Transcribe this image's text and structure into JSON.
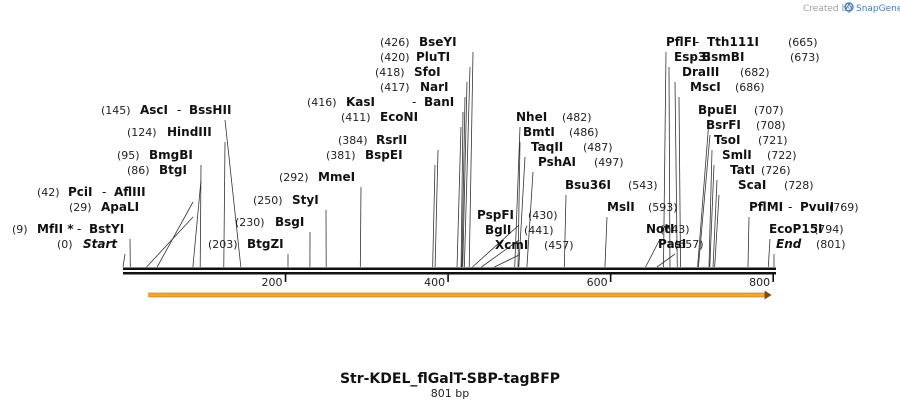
{
  "credit": {
    "created_by": "Created by",
    "brand": "SnapGene"
  },
  "sequence": {
    "length": 801,
    "title": "Str-KDEL_flGalT-SBP-tagBFP",
    "length_label": "801 bp"
  },
  "ruler_ticks": [
    {
      "value": 200,
      "label": "200"
    },
    {
      "value": 400,
      "label": "400"
    },
    {
      "value": 600,
      "label": "600"
    },
    {
      "value": 800,
      "label": "800"
    }
  ],
  "feature": {
    "name": "orf-arrow",
    "start": 34,
    "end": 798,
    "color": "#f0a830"
  },
  "sites": [
    {
      "pos": 426,
      "pos_label": "(426)",
      "names": [
        "BseYI"
      ]
    },
    {
      "pos": 420,
      "pos_label": "(420)",
      "names": [
        "PluTI"
      ]
    },
    {
      "pos": 418,
      "pos_label": "(418)",
      "names": [
        "SfoI"
      ]
    },
    {
      "pos": 417,
      "pos_label": "(417)",
      "names": [
        "NarI"
      ]
    },
    {
      "pos": 416,
      "pos_label": "(416)",
      "names": [
        "KasI",
        "BanI"
      ]
    },
    {
      "pos": 411,
      "pos_label": "(411)",
      "names": [
        "EcoNI"
      ]
    },
    {
      "pos": 384,
      "pos_label": "(384)",
      "names": [
        "RsrII"
      ]
    },
    {
      "pos": 381,
      "pos_label": "(381)",
      "names": [
        "BspEI"
      ]
    },
    {
      "pos": 145,
      "pos_label": "(145)",
      "names": [
        "AscI",
        "BssHII"
      ]
    },
    {
      "pos": 124,
      "pos_label": "(124)",
      "names": [
        "HindIII"
      ]
    },
    {
      "pos": 95,
      "pos_label": "(95)",
      "names": [
        "BmgBI"
      ]
    },
    {
      "pos": 86,
      "pos_label": "(86)",
      "names": [
        "BtgI"
      ]
    },
    {
      "pos": 42,
      "pos_label": "(42)",
      "names": [
        "PciI",
        "AflIII"
      ]
    },
    {
      "pos": 29,
      "pos_label": "(29)",
      "names": [
        "ApaLI"
      ]
    },
    {
      "pos": 9,
      "pos_label": "(9)",
      "names": [
        "MfII *",
        "BstYI"
      ]
    },
    {
      "pos": 0,
      "pos_label": "(0)",
      "names": [
        "Start"
      ],
      "italic": true
    },
    {
      "pos": 292,
      "pos_label": "(292)",
      "names": [
        "MmeI"
      ]
    },
    {
      "pos": 250,
      "pos_label": "(250)",
      "names": [
        "StyI"
      ]
    },
    {
      "pos": 230,
      "pos_label": "(230)",
      "names": [
        "BsgI"
      ]
    },
    {
      "pos": 203,
      "pos_label": "(203)",
      "names": [
        "BtgZI"
      ]
    },
    {
      "pos": 482,
      "pos_label": "(482)",
      "names": [
        "NheI"
      ]
    },
    {
      "pos": 486,
      "pos_label": "(486)",
      "names": [
        "BmtI"
      ]
    },
    {
      "pos": 487,
      "pos_label": "(487)",
      "names": [
        "TaqII"
      ]
    },
    {
      "pos": 497,
      "pos_label": "(497)",
      "names": [
        "PshAI"
      ]
    },
    {
      "pos": 430,
      "pos_label": "(430)",
      "names": [
        "PspFI"
      ]
    },
    {
      "pos": 441,
      "pos_label": "(441)",
      "names": [
        "BglI"
      ]
    },
    {
      "pos": 457,
      "pos_label": "(457)",
      "names": [
        "XcmI"
      ]
    },
    {
      "pos": 543,
      "pos_label": "(543)",
      "names": [
        "Bsu36I"
      ]
    },
    {
      "pos": 593,
      "pos_label": "(593)",
      "names": [
        "MslI"
      ]
    },
    {
      "pos": 665,
      "pos_label": "(665)",
      "names": [
        "PflFI",
        "Tth111I"
      ]
    },
    {
      "pos": 673,
      "pos_label": "(673)",
      "names": [
        "Esp3I",
        "BsmBI"
      ]
    },
    {
      "pos": 682,
      "pos_label": "(682)",
      "names": [
        "DraIII"
      ]
    },
    {
      "pos": 686,
      "pos_label": "(686)",
      "names": [
        "MscI"
      ]
    },
    {
      "pos": 707,
      "pos_label": "(707)",
      "names": [
        "BpuEI"
      ]
    },
    {
      "pos": 708,
      "pos_label": "(708)",
      "names": [
        "BsrFI"
      ]
    },
    {
      "pos": 721,
      "pos_label": "(721)",
      "names": [
        "TsoI"
      ]
    },
    {
      "pos": 722,
      "pos_label": "(722)",
      "names": [
        "SmlI"
      ]
    },
    {
      "pos": 726,
      "pos_label": "(726)",
      "names": [
        "TatI"
      ]
    },
    {
      "pos": 728,
      "pos_label": "(728)",
      "names": [
        "ScaI"
      ]
    },
    {
      "pos": 643,
      "pos_label": "(643)",
      "names": [
        "NotI"
      ]
    },
    {
      "pos": 657,
      "pos_label": "(657)",
      "names": [
        "PasI"
      ]
    },
    {
      "pos": 769,
      "pos_label": "(769)",
      "names": [
        "PflMI",
        "PvuII"
      ]
    },
    {
      "pos": 794,
      "pos_label": "(794)",
      "names": [
        "EcoP15I"
      ]
    },
    {
      "pos": 801,
      "pos_label": "(801)",
      "names": [
        "End"
      ],
      "italic": true
    }
  ]
}
